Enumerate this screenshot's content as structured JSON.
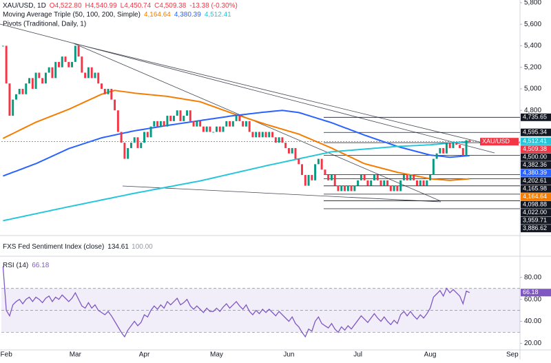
{
  "chart_data": {
    "type": "candlestick",
    "title": "XAU/USD, 1D",
    "ohlc": [
      "O4,522.80",
      "H4,540.99",
      "L4,450.74",
      "C4,509.38",
      "-13.38 (-0.30%)"
    ],
    "indicators": [
      "Moving Average Triple (50, 100, 200, Simple)",
      "Pivots (Traditional, Daily, 1)"
    ],
    "categories": [
      null,
      "Feb",
      null,
      null,
      null,
      null,
      null,
      null,
      null,
      null,
      null,
      null,
      null,
      null,
      null,
      null,
      null,
      null,
      null,
      null,
      null,
      null,
      "Mar",
      null,
      null,
      null,
      null,
      null,
      null,
      null,
      null,
      null,
      null,
      null,
      null,
      null,
      null,
      null,
      null,
      null,
      null,
      null,
      null,
      "Apr",
      null,
      null,
      null,
      null,
      null,
      null,
      null,
      null,
      null,
      null,
      null,
      null,
      null,
      null,
      null,
      null,
      null,
      null,
      null,
      null,
      null,
      "May",
      null,
      null,
      null,
      null,
      null,
      null,
      null,
      null,
      null,
      null,
      null,
      null,
      null,
      null,
      null,
      null,
      null,
      null,
      null,
      null,
      null,
      "Jun",
      null,
      null,
      null,
      null,
      null,
      null,
      null,
      null,
      null,
      null,
      null,
      null,
      null,
      null,
      null,
      null,
      null,
      null,
      null,
      null,
      "Jul",
      null,
      null,
      null,
      null,
      null,
      null,
      null,
      null,
      null,
      null,
      null,
      null,
      null,
      null,
      null,
      null,
      null,
      null,
      null,
      null,
      null,
      "Aug",
      null,
      null,
      null,
      null,
      null,
      null,
      null,
      null,
      null,
      null,
      null,
      null,
      null,
      null,
      null,
      null,
      null,
      null,
      null,
      null,
      null,
      null,
      null,
      null,
      "Sep",
      null
    ],
    "series": [
      {
        "name": "XAU/USD",
        "up_color": "#089981",
        "down_color": "#f23645",
        "last_label": "4,509.38",
        "values": [
          5400,
          5050,
          4750,
          4900,
          4950,
          5000,
          4950,
          5050,
          5100,
          5000,
          5150,
          5100,
          5050,
          5150,
          5200,
          5100,
          5250,
          5200,
          5300,
          5250,
          5200,
          5250,
          5400,
          5300,
          5150,
          5100,
          5200,
          5100,
          5150,
          5050,
          5000,
          4950,
          5000,
          4900,
          4800,
          4600,
          4500,
          4350,
          4450,
          4500,
          4550,
          4450,
          4500,
          4600,
          4550,
          4650,
          4700,
          4650,
          4700,
          4650,
          4750,
          4700,
          4750,
          4800,
          4700,
          4750,
          4800,
          4700,
          4650,
          4700,
          4650,
          4600,
          4650,
          4600,
          4600,
          4650,
          4600,
          4650,
          4700,
          4650,
          4700,
          4750,
          4700,
          4650,
          4700,
          4600,
          4550,
          4600,
          4550,
          4600,
          4550,
          4600,
          4550,
          4500,
          4550,
          4500,
          4450,
          4400,
          4450,
          4350,
          4300,
          4200,
          4100,
          4200,
          4150,
          4300,
          4350,
          4250,
          4200,
          4150,
          4200,
          4100,
          4050,
          4100,
          4050,
          4100,
          4050,
          4100,
          4150,
          4200,
          4150,
          4100,
          4150,
          4200,
          4150,
          4100,
          4150,
          4100,
          4050,
          4100,
          4050,
          4150,
          4200,
          4150,
          4200,
          4150,
          4100,
          4150,
          4100,
          4150,
          4200,
          4350,
          4400,
          4450,
          4400,
          4500,
          4450,
          4500,
          4480,
          4450,
          4380,
          4522.8,
          4509.38,
          null,
          null,
          null,
          null,
          null,
          null,
          null,
          null,
          null,
          null,
          null,
          null,
          null,
          null
        ]
      }
    ],
    "moving_averages": [
      {
        "color": "#f57c00",
        "last_label": "4,164.64",
        "values": [
          4540,
          4555,
          4570,
          4585,
          4600,
          4615,
          4630,
          4645,
          4660,
          4675,
          4690,
          4702,
          4714,
          4726,
          4738,
          4750,
          4762,
          4774,
          4786,
          4798,
          4810,
          4824,
          4838,
          4852,
          4866,
          4880,
          4894,
          4908,
          4922,
          4936,
          4950,
          4959,
          4968,
          4977,
          4985,
          4981,
          4977,
          4973,
          4969,
          4965,
          4960,
          4957,
          4954,
          4951,
          4948,
          4945,
          4942,
          4939,
          4936,
          4933,
          4930,
          4925,
          4920,
          4915,
          4910,
          4905,
          4900,
          4895,
          4890,
          4885,
          4880,
          4869,
          4858,
          4847,
          4836,
          4825,
          4814,
          4803,
          4792,
          4781,
          4770,
          4760,
          4750,
          4740,
          4730,
          4720,
          4710,
          4700,
          4690,
          4680,
          4670,
          4661,
          4652,
          4643,
          4634,
          4625,
          4616,
          4607,
          4598,
          4589,
          4580,
          4567,
          4554,
          4541,
          4528,
          4515,
          4502,
          4489,
          4476,
          4463,
          4450,
          4435,
          4421,
          4406,
          4392,
          4377,
          4363,
          4348,
          4334,
          4319,
          4305,
          4297,
          4289,
          4281,
          4273,
          4265,
          4257,
          4249,
          4241,
          4233,
          4225,
          4219,
          4213,
          4207,
          4201,
          4195,
          4189,
          4183,
          4177,
          4171,
          4165,
          4162,
          4160,
          4157,
          4155,
          4152,
          4150,
          4152,
          4155,
          4157,
          4160,
          4162,
          4164.64,
          null,
          null,
          null,
          null,
          null,
          null,
          null,
          null,
          null,
          null,
          null,
          null,
          null,
          null
        ]
      },
      {
        "color": "#2962ff",
        "last_label": "4,380.39",
        "values": [
          4190,
          4202,
          4213,
          4225,
          4236,
          4248,
          4259,
          4271,
          4282,
          4294,
          4305,
          4319,
          4333,
          4347,
          4361,
          4375,
          4389,
          4403,
          4417,
          4431,
          4445,
          4455,
          4465,
          4475,
          4485,
          4495,
          4505,
          4515,
          4525,
          4535,
          4545,
          4552,
          4558,
          4565,
          4571,
          4578,
          4584,
          4591,
          4597,
          4604,
          4610,
          4615,
          4620,
          4625,
          4630,
          4635,
          4640,
          4645,
          4650,
          4655,
          4660,
          4665,
          4669,
          4674,
          4678,
          4683,
          4687,
          4692,
          4696,
          4701,
          4705,
          4710,
          4714,
          4719,
          4723,
          4728,
          4732,
          4737,
          4741,
          4746,
          4750,
          4754,
          4757,
          4761,
          4764,
          4768,
          4771,
          4775,
          4778,
          4782,
          4785,
          4788,
          4791,
          4794,
          4797,
          4800,
          4796,
          4792,
          4788,
          4784,
          4780,
          4771,
          4761,
          4752,
          4742,
          4733,
          4723,
          4714,
          4704,
          4695,
          4685,
          4674,
          4662,
          4651,
          4639,
          4628,
          4616,
          4605,
          4593,
          4582,
          4570,
          4560,
          4549,
          4539,
          4528,
          4518,
          4507,
          4497,
          4486,
          4476,
          4465,
          4457,
          4449,
          4441,
          4433,
          4425,
          4417,
          4409,
          4401,
          4393,
          4385,
          4382,
          4378,
          4375,
          4372,
          4368,
          4365,
          4367,
          4370,
          4372,
          4375,
          4378,
          4380.39,
          null,
          null,
          null,
          null,
          null,
          null,
          null,
          null,
          null,
          null,
          null,
          null,
          null,
          null
        ]
      },
      {
        "color": "#26c6da",
        "last_label": "4,512.41",
        "values": [
          3775,
          3782,
          3788,
          3795,
          3801,
          3808,
          3814,
          3821,
          3827,
          3834,
          3840,
          3847,
          3853,
          3860,
          3866,
          3873,
          3879,
          3886,
          3892,
          3899,
          3905,
          3911,
          3918,
          3924,
          3930,
          3936,
          3943,
          3949,
          3955,
          3961,
          3968,
          3974,
          3980,
          3986,
          3993,
          3999,
          4005,
          4011,
          4018,
          4024,
          4030,
          4036,
          4042,
          4047,
          4053,
          4059,
          4065,
          4070,
          4076,
          4082,
          4088,
          4093,
          4099,
          4105,
          4111,
          4116,
          4122,
          4128,
          4134,
          4139,
          4145,
          4152,
          4159,
          4166,
          4173,
          4180,
          4187,
          4194,
          4201,
          4208,
          4215,
          4222,
          4229,
          4236,
          4243,
          4250,
          4257,
          4264,
          4271,
          4278,
          4285,
          4292,
          4298,
          4305,
          4311,
          4318,
          4324,
          4331,
          4337,
          4344,
          4350,
          4357,
          4363,
          4370,
          4376,
          4383,
          4389,
          4396,
          4402,
          4409,
          4415,
          4418,
          4420,
          4423,
          4425,
          4428,
          4430,
          4433,
          4435,
          4438,
          4440,
          4443,
          4445,
          4448,
          4450,
          4453,
          4455,
          4458,
          4460,
          4463,
          4465,
          4467,
          4468,
          4470,
          4471,
          4473,
          4474,
          4476,
          4477,
          4479,
          4480,
          4483,
          4485,
          4488,
          4491,
          4494,
          4496,
          4499,
          4502,
          4504,
          4507,
          4510,
          4512.41,
          null,
          null,
          null,
          null,
          null,
          null,
          null,
          null,
          null,
          null,
          null,
          null,
          null,
          null
        ]
      }
    ],
    "pivots": [
      {
        "value": 4735.65,
        "label": "4,735.65"
      },
      {
        "value": 4595.34,
        "label": "4,595.34"
      },
      {
        "value": 4500.0,
        "label": "4,500.00"
      },
      {
        "value": 4382.36,
        "label": "4,382.36"
      },
      {
        "value": 4202.61,
        "label": "4,202.61"
      },
      {
        "value": 4165.98,
        "label": "4,165.98"
      },
      {
        "value": 4098.88,
        "label": "4,098.88"
      },
      {
        "value": 4022.0,
        "label": "4,022.00"
      },
      {
        "value": 3959.71,
        "label": "3,959.71"
      },
      {
        "value": 3886.62,
        "label": "3,886.62"
      }
    ],
    "ylim": [
      3650,
      5825
    ],
    "yticks": [
      {
        "value": 4800,
        "label": "4,800"
      },
      {
        "value": 5000,
        "label": "5,000"
      },
      {
        "value": 5200,
        "label": "5,200"
      },
      {
        "value": 5400,
        "label": "5,400"
      },
      {
        "value": 5600,
        "label": "5,600"
      },
      {
        "value": 5800,
        "label": "5,800"
      }
    ],
    "sentiment": {
      "title": "FXS Fed Sentiment Index (close)",
      "readings": [
        "134.61",
        "100.00"
      ]
    },
    "rsi": {
      "title": "RSI (14)",
      "color": "#7e57c2",
      "last_label": "66.18",
      "ylim": [
        14,
        98
      ],
      "yticks": [
        {
          "value": 20,
          "label": "20.00"
        },
        {
          "value": 40,
          "label": "40.00"
        },
        {
          "value": 60,
          "label": "60.00"
        },
        {
          "value": 80,
          "label": "80.00"
        }
      ],
      "band": [
        30,
        70
      ],
      "levels": [
        30,
        50,
        70
      ],
      "values": [
        90,
        50,
        45,
        55,
        58,
        60,
        56,
        60,
        62,
        58,
        62,
        60,
        57,
        61,
        63,
        58,
        62,
        60,
        64,
        61,
        58,
        61,
        66,
        60,
        54,
        52,
        57,
        52,
        55,
        50,
        48,
        46,
        49,
        45,
        40,
        35,
        30,
        26,
        32,
        36,
        40,
        36,
        39,
        46,
        44,
        50,
        54,
        51,
        55,
        52,
        58,
        55,
        58,
        61,
        55,
        57,
        60,
        54,
        51,
        54,
        51,
        48,
        52,
        49,
        49,
        52,
        49,
        53,
        56,
        52,
        55,
        58,
        54,
        51,
        55,
        49,
        46,
        50,
        47,
        51,
        48,
        51,
        48,
        45,
        49,
        46,
        43,
        40,
        44,
        38,
        35,
        30,
        26,
        33,
        31,
        40,
        44,
        38,
        36,
        34,
        38,
        33,
        30,
        35,
        32,
        36,
        33,
        37,
        41,
        45,
        42,
        39,
        43,
        47,
        43,
        40,
        44,
        40,
        37,
        41,
        38,
        46,
        49,
        45,
        49,
        45,
        42,
        46,
        43,
        47,
        52,
        62,
        65,
        68,
        63,
        70,
        66,
        69,
        66,
        63,
        56,
        67.5,
        66.18,
        null,
        null,
        null,
        null,
        null,
        null,
        null,
        null,
        null,
        null,
        null,
        null,
        null,
        null
      ]
    }
  }
}
